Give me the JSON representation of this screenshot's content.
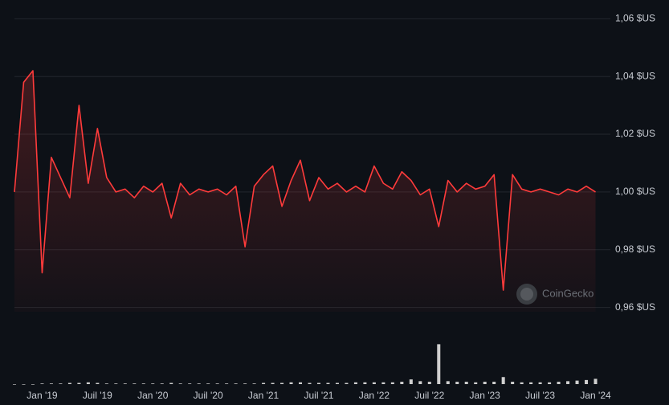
{
  "chart_data": {
    "type": "line",
    "watermark": "CoinGecko",
    "x": [
      "2018-10",
      "2018-11",
      "2018-12",
      "2019-01",
      "2019-02",
      "2019-03",
      "2019-04",
      "2019-05",
      "2019-06",
      "2019-07",
      "2019-08",
      "2019-09",
      "2019-10",
      "2019-11",
      "2019-12",
      "2020-01",
      "2020-02",
      "2020-03",
      "2020-04",
      "2020-05",
      "2020-06",
      "2020-07",
      "2020-08",
      "2020-09",
      "2020-10",
      "2020-11",
      "2020-12",
      "2021-01",
      "2021-02",
      "2021-03",
      "2021-04",
      "2021-05",
      "2021-06",
      "2021-07",
      "2021-08",
      "2021-09",
      "2021-10",
      "2021-11",
      "2021-12",
      "2022-01",
      "2022-02",
      "2022-03",
      "2022-04",
      "2022-05",
      "2022-06",
      "2022-07",
      "2022-08",
      "2022-09",
      "2022-10",
      "2022-11",
      "2022-12",
      "2023-01",
      "2023-02",
      "2023-03",
      "2023-04",
      "2023-05",
      "2023-06",
      "2023-07",
      "2023-08",
      "2023-09",
      "2023-10",
      "2023-11",
      "2023-12",
      "2024-01"
    ],
    "series": [
      {
        "name": "Prix",
        "color": "#ff3b3b",
        "values": [
          1.0,
          1.038,
          1.042,
          0.972,
          1.012,
          1.005,
          0.998,
          1.03,
          1.003,
          1.022,
          1.005,
          1.0,
          1.001,
          0.998,
          1.002,
          1.0,
          1.003,
          0.991,
          1.003,
          0.999,
          1.001,
          1.0,
          1.001,
          0.999,
          1.002,
          0.981,
          1.002,
          1.006,
          1.009,
          0.995,
          1.004,
          1.011,
          0.997,
          1.005,
          1.001,
          1.003,
          1.0,
          1.002,
          1.0,
          1.009,
          1.003,
          1.001,
          1.007,
          1.004,
          0.999,
          1.001,
          0.988,
          1.004,
          1.0,
          1.003,
          1.001,
          1.002,
          1.006,
          0.966,
          1.006,
          1.001,
          1.0,
          1.001,
          1.0,
          0.999,
          1.001,
          1.0,
          1.002,
          1.0
        ]
      },
      {
        "name": "Volume",
        "color": "#d0d0d0",
        "axis": "y2",
        "values": [
          0,
          0,
          0,
          1,
          1,
          1,
          2,
          2,
          3,
          2,
          1,
          1,
          1,
          1,
          1,
          1,
          1,
          2,
          1,
          1,
          1,
          1,
          1,
          1,
          1,
          1,
          1,
          2,
          2,
          2,
          3,
          3,
          2,
          2,
          2,
          2,
          2,
          3,
          3,
          3,
          3,
          3,
          4,
          8,
          5,
          4,
          68,
          5,
          4,
          4,
          3,
          4,
          4,
          12,
          4,
          3,
          3,
          3,
          3,
          4,
          5,
          6,
          7,
          9
        ]
      }
    ],
    "xlim": [
      "2018-10",
      "2024-02"
    ],
    "xticks": [
      {
        "value": "2019-01",
        "label": "Jan '19"
      },
      {
        "value": "2019-07",
        "label": "Juil '19"
      },
      {
        "value": "2020-01",
        "label": "Jan '20"
      },
      {
        "value": "2020-07",
        "label": "Juil '20"
      },
      {
        "value": "2021-01",
        "label": "Jan '21"
      },
      {
        "value": "2021-07",
        "label": "Juil '21"
      },
      {
        "value": "2022-01",
        "label": "Jan '22"
      },
      {
        "value": "2022-07",
        "label": "Juil '22"
      },
      {
        "value": "2023-01",
        "label": "Jan '23"
      },
      {
        "value": "2023-07",
        "label": "Juil '23"
      },
      {
        "value": "2024-01",
        "label": "Jan '24"
      }
    ],
    "ylim": [
      0.9585,
      1.0665
    ],
    "yticks": [
      {
        "value": 0.96,
        "label": "0,96 $US"
      },
      {
        "value": 0.98,
        "label": "0,98 $US"
      },
      {
        "value": 1.0,
        "label": "1,00 $US"
      },
      {
        "value": 1.02,
        "label": "1,02 $US"
      },
      {
        "value": 1.04,
        "label": "1,04 $US"
      },
      {
        "value": 1.06,
        "label": "1,06 $US"
      }
    ],
    "y2lim": [
      0,
      100
    ],
    "grid": true
  }
}
